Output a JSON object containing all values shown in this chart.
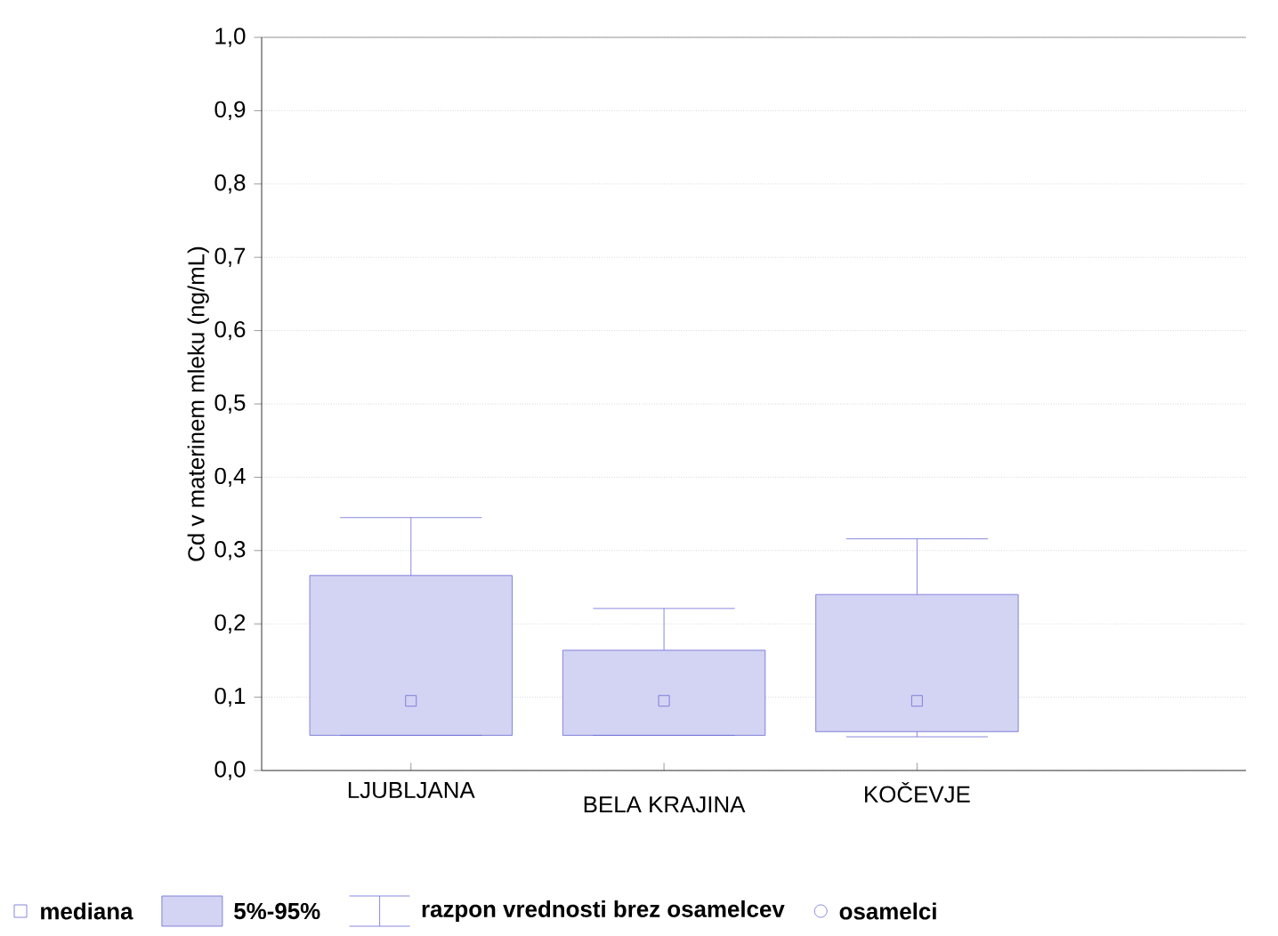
{
  "chart_data": {
    "type": "box",
    "ylabel": "Cd v materinem mleku (ng/mL)",
    "categories": [
      "LJUBLJANA",
      "BELA KRAJINA",
      "KOČEVJE"
    ],
    "color": "#6b6bd6",
    "boxes": [
      {
        "low": 0.048,
        "q1": 0.048,
        "median": 0.095,
        "q3": 0.266,
        "high": 0.345
      },
      {
        "low": 0.048,
        "q1": 0.048,
        "median": 0.095,
        "q3": 0.164,
        "high": 0.221
      },
      {
        "low": 0.046,
        "q1": 0.053,
        "median": 0.095,
        "q3": 0.24,
        "high": 0.316
      }
    ],
    "ylim": [
      0,
      1
    ],
    "yticks": [
      {
        "value": 0,
        "label": "0,0"
      },
      {
        "value": 0.1,
        "label": "0,1"
      },
      {
        "value": 0.2,
        "label": "0,2"
      },
      {
        "value": 0.3,
        "label": "0,3"
      },
      {
        "value": 0.4,
        "label": "0,4"
      },
      {
        "value": 0.5,
        "label": "0,5"
      },
      {
        "value": 0.6,
        "label": "0,6"
      },
      {
        "value": 0.7,
        "label": "0,7"
      },
      {
        "value": 0.8,
        "label": "0,8"
      },
      {
        "value": 0.9,
        "label": "0,9"
      },
      {
        "value": 1,
        "label": "1,0"
      }
    ],
    "grid": "y",
    "annotations": [
      "mediana",
      "5%-95%",
      "razpon vrednosti brez osamelcev",
      "osamelci"
    ]
  }
}
